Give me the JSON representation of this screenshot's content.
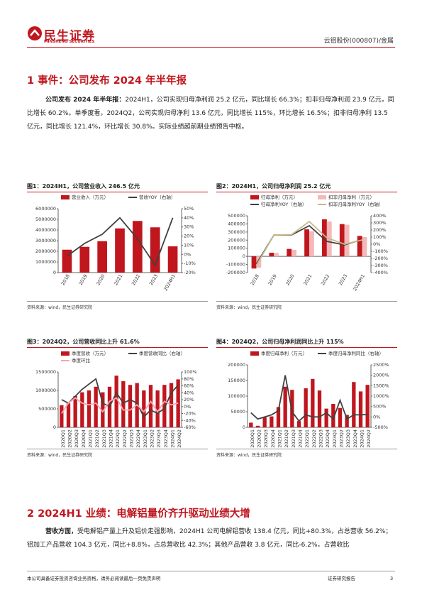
{
  "header": {
    "logo": "民生证券",
    "logo_en": "MINSHENG SECURITIES",
    "stock": "云铝股份(000807)/金属"
  },
  "section1": {
    "title": "1 事件：公司发布 2024 年半年报",
    "lead": "公司发布 2024 年半年报：",
    "text": "2024H1，公司实现归母净利润 25.2 亿元，同比增长 66.3%；扣非归母净利润 23.9 亿元，同比增长 60.2%。单季度看，2024Q2，公司实现归母净利 13.6 亿元，同比增长 115%，环比增长 16.5%；扣非归母净利 13.5 亿元，同比增长 121.4%，环比增长 30.8%。实际业绩超前期业绩预告中枢。"
  },
  "figures": [
    {
      "caption": "图1：2024H1，公司营业收入 246.5 亿元",
      "source": "资料来源：wind，民生证券研究院",
      "chart_data": {
        "type": "bar",
        "categories": [
          "2018",
          "2019",
          "2020",
          "2021",
          "2022",
          "2023",
          "2024H1"
        ],
        "series": [
          {
            "name": "营业收入（万元）",
            "type": "bar",
            "color": "#c0161e",
            "values": [
              2150000,
              2420000,
              2950000,
              4150000,
              4850000,
              4250000,
              2465000
            ]
          },
          {
            "name": "营收YOY（右轴）",
            "type": "line",
            "axis": "y2",
            "color": "#404040",
            "values": [
              -2,
              12,
              22,
              40,
              17,
              -12,
              40
            ]
          }
        ],
        "ylim": [
          0,
          6000000
        ],
        "yticks": [
          0,
          1000000,
          2000000,
          3000000,
          4000000,
          5000000,
          6000000
        ],
        "y2lim": [
          -20,
          50
        ],
        "y2ticks": [
          {
            "value": -20,
            "label": "-20%"
          },
          {
            "value": -10,
            "label": "-10%"
          },
          {
            "value": 0,
            "label": "0%"
          },
          {
            "value": 10,
            "label": "10%"
          },
          {
            "value": 20,
            "label": "20%"
          },
          {
            "value": 30,
            "label": "30%"
          },
          {
            "value": 40,
            "label": "40%"
          },
          {
            "value": 50,
            "label": "50%"
          }
        ]
      }
    },
    {
      "caption": "图2：2024H1，公司归母净利润 25.2 亿元",
      "source": "资料来源：wind，民生证券研究院",
      "chart_data": {
        "type": "bar",
        "categories": [
          "2018",
          "2019",
          "2020",
          "2021",
          "2022",
          "2023",
          "2024H1"
        ],
        "series": [
          {
            "name": "归母净利（万元）",
            "type": "bar",
            "color": "#c0161e",
            "values": [
              -150000,
              45000,
              92000,
              333000,
              457000,
              398000,
              252000
            ]
          },
          {
            "name": "扣非归母净利（万元）",
            "type": "bar",
            "color": "#f4b8b8",
            "values": [
              -140000,
              42000,
              80000,
              310000,
              430000,
              390000,
              239000
            ]
          },
          {
            "name": "归母净利YOY（右轴）",
            "type": "line",
            "axis": "y2",
            "color": "#404040",
            "values": [
              -280,
              130,
              130,
              260,
              40,
              -10,
              66
            ]
          },
          {
            "name": "扣非归母净利YOY（右轴）",
            "type": "line",
            "axis": "y2",
            "color": "#c8b98a",
            "values": [
              -300,
              130,
              135,
              320,
              90,
              0,
              60
            ]
          }
        ],
        "ylim": [
          -200000,
          500000
        ],
        "yticks": [
          -200000,
          -100000,
          0,
          100000,
          200000,
          300000,
          400000,
          500000
        ],
        "y2lim": [
          -400,
          400
        ],
        "y2ticks": [
          {
            "value": -400,
            "label": "-400%"
          },
          {
            "value": -300,
            "label": "-300%"
          },
          {
            "value": -200,
            "label": "-200%"
          },
          {
            "value": -100,
            "label": "-100%"
          },
          {
            "value": 0,
            "label": "0%"
          },
          {
            "value": 100,
            "label": "100%"
          },
          {
            "value": 200,
            "label": "200%"
          },
          {
            "value": 300,
            "label": "300%"
          },
          {
            "value": 400,
            "label": "400%"
          }
        ]
      }
    },
    {
      "caption": "图3：2024Q2，公司营收同比上升 61.6%",
      "source": "资料来源：wind，民生证券研究院",
      "chart_data": {
        "type": "bar",
        "categories": [
          "2020Q1",
          "2020Q2",
          "2020Q3",
          "2020Q4",
          "2021Q1",
          "2021Q2",
          "2021Q3",
          "2021Q4",
          "2022Q1",
          "2022Q2",
          "2022Q3",
          "2022Q4",
          "2023Q1",
          "2023Q2",
          "2023Q3",
          "2023Q4",
          "2024Q1",
          "2024Q2"
        ],
        "series": [
          {
            "name": "季度营收（万元）",
            "type": "bar",
            "color": "#c0161e",
            "values": [
              600000,
              650000,
              850000,
              950000,
              1000000,
              1100000,
              950000,
              1100000,
              1400000,
              1250000,
              1150000,
              1200000,
              1000000,
              1150000,
              1000000,
              1150000,
              1200000,
              1300000
            ]
          },
          {
            "name": "季度营收同比（右轴）",
            "type": "line",
            "axis": "y2",
            "color": "#404040",
            "values": [
              20,
              10,
              30,
              50,
              65,
              80,
              10,
              0,
              40,
              10,
              20,
              10,
              -30,
              -10,
              -20,
              -5,
              40,
              62
            ]
          },
          {
            "name": "季度环比",
            "type": "line",
            "axis": "y2",
            "color": "#f4a6b0",
            "values": [
              -20,
              10,
              25,
              10,
              5,
              10,
              -15,
              15,
              25,
              -10,
              -10,
              5,
              -15,
              15,
              -15,
              15,
              5,
              10
            ]
          }
        ],
        "ylim": [
          0,
          1500000
        ],
        "yticks": [
          0,
          500000,
          1000000,
          1500000
        ],
        "y2lim": [
          -60,
          100
        ],
        "y2ticks": [
          {
            "value": -60,
            "label": "-60%"
          },
          {
            "value": -40,
            "label": "-40%"
          },
          {
            "value": -20,
            "label": "-20%"
          },
          {
            "value": 0,
            "label": "0%"
          },
          {
            "value": 20,
            "label": "20%"
          },
          {
            "value": 40,
            "label": "40%"
          },
          {
            "value": 60,
            "label": "60%"
          },
          {
            "value": 80,
            "label": "80%"
          },
          {
            "value": 100,
            "label": "100%"
          }
        ]
      }
    },
    {
      "caption": "图4：2024Q2，公司归母净利润同比上升 115%",
      "source": "资料来源：wind，民生证券研究院",
      "chart_data": {
        "type": "bar",
        "categories": [
          "2020Q1",
          "2020Q2",
          "2020Q3",
          "2020Q4",
          "2021Q1",
          "2021Q2",
          "2021Q3",
          "2021Q4",
          "2022Q1",
          "2022Q2",
          "2022Q3",
          "2022Q4",
          "2023Q1",
          "2023Q2",
          "2023Q3",
          "2023Q4",
          "2024Q1",
          "2024Q2"
        ],
        "series": [
          {
            "name": "季度归母净利（万元）",
            "type": "bar",
            "color": "#c0161e",
            "values": [
              15000,
              5000,
              32000,
              35000,
              65000,
              130000,
              120000,
              20000,
              125000,
              155000,
              118000,
              60000,
              75000,
              62000,
              40000,
              145000,
              115000,
              136000
            ]
          },
          {
            "name": "季度归母净利同比（右轴）",
            "type": "line",
            "axis": "y2",
            "color": "#404040",
            "values": [
              200,
              -100,
              0,
              100,
              300,
              2000,
              250,
              -200,
              100,
              0,
              0,
              200,
              -100,
              800,
              -100,
              100,
              100,
              115
            ]
          }
        ],
        "ylim": [
          0,
          200000
        ],
        "yticks": [
          0,
          50000,
          100000,
          150000,
          200000
        ],
        "y2lim": [
          -500,
          2500
        ],
        "y2ticks": [
          {
            "value": -500,
            "label": "-500%"
          },
          {
            "value": 0,
            "label": "0%"
          },
          {
            "value": 500,
            "label": "500%"
          },
          {
            "value": 1000,
            "label": "1000%"
          },
          {
            "value": 1500,
            "label": "1500%"
          },
          {
            "value": 2000,
            "label": "2000%"
          },
          {
            "value": 2500,
            "label": "2500%"
          }
        ]
      }
    }
  ],
  "section2": {
    "title": "2 2024H1 业绩：电解铝量价齐升驱动业绩大增",
    "lead": "营收方面，",
    "text": "受电解铝产量上升及铝价走强影响，2024H1 公司电解铝营收 138.4 亿元，同比+80.3%，占总营收 56.2%；铝加工产品营收 104.3 亿元，同比+8.8%，占总营收比 42.3%；其他产品营收 3.8 亿元，同比-6.2%，占营收比"
  },
  "footer": {
    "disclaimer": "本公司具备证券投资咨询业务资格，请务必阅读最后一页免责声明",
    "type": "证券研究报告",
    "page": "3"
  }
}
